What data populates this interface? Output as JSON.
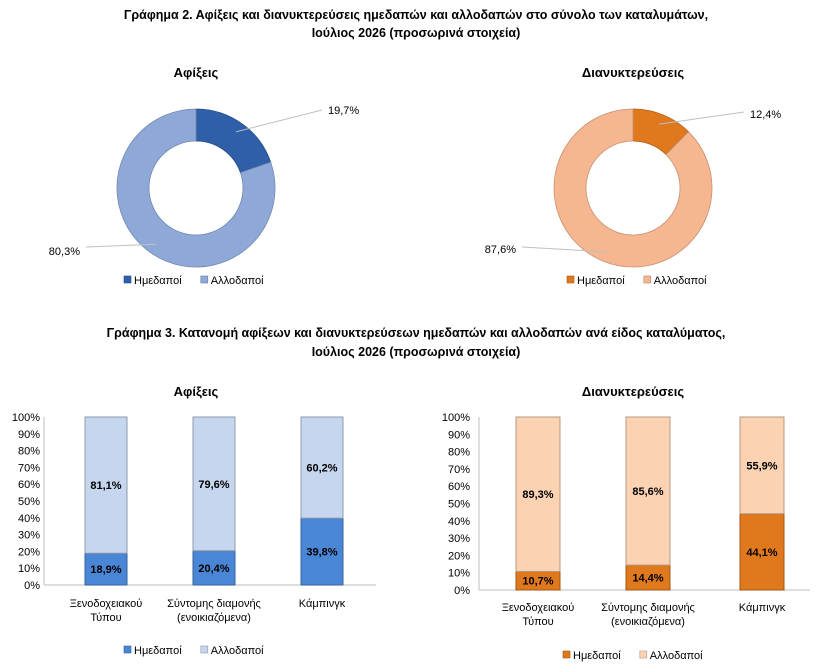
{
  "figure2": {
    "title_line1": "Γράφημα 2. Αφίξεις και διανυκτερεύσεις ημεδαπών και αλλοδαπών στο σύνολο των καταλυμάτων,",
    "title_line2": "Ιούλιος 2026  (προσωρινά στοιχεία)"
  },
  "figure3": {
    "title_line1": "Γράφημα 3. Κατανομή αφίξεων και διανυκτερεύσεων ημεδαπών και αλλοδαπών ανά είδος καταλύματος,",
    "title_line2": "Ιούλιος 2026 (προσωρινά στοιχεία)"
  },
  "chart_data": [
    {
      "id": "pie_arrivals",
      "type": "pie",
      "title": "Αφίξεις",
      "legend_position": "bottom",
      "slices": [
        {
          "name": "Ημεδαποί",
          "value": 19.7,
          "label": "19,7%",
          "color": "#2e5fa8"
        },
        {
          "name": "Αλλοδαποί",
          "value": 80.3,
          "label": "80,3%",
          "color": "#8ea9d8"
        }
      ]
    },
    {
      "id": "pie_nights",
      "type": "pie",
      "title": "Διανυκτερεύσεις",
      "legend_position": "bottom",
      "slices": [
        {
          "name": "Ημεδαποί",
          "value": 12.4,
          "label": "12,4%",
          "color": "#e0781e"
        },
        {
          "name": "Αλλοδαποί",
          "value": 87.6,
          "label": "87,6%",
          "color": "#f5b690"
        }
      ]
    },
    {
      "id": "bar_arrivals",
      "type": "bar",
      "stacked": true,
      "percent": true,
      "title": "Αφίξεις",
      "legend_position": "bottom",
      "ylim": [
        0,
        100
      ],
      "yticks": [
        "0%",
        "10%",
        "20%",
        "30%",
        "40%",
        "50%",
        "60%",
        "70%",
        "80%",
        "90%",
        "100%"
      ],
      "categories": [
        [
          "Ξενοδοχειακού",
          "Τύπου"
        ],
        [
          "Σύντομης διαμονής",
          "(ενοικιαζόμενα)"
        ],
        [
          "Κάμπινγκ"
        ]
      ],
      "series": [
        {
          "name": "Ημεδαποί",
          "values": [
            18.9,
            20.4,
            39.8
          ],
          "labels": [
            "18,9%",
            "20,4%",
            "39,8%"
          ],
          "color": "#4a86d6"
        },
        {
          "name": "Αλλοδαποί",
          "values": [
            81.1,
            79.6,
            60.2
          ],
          "labels": [
            "81,1%",
            "79,6%",
            "60,2%"
          ],
          "color": "#c6d6ee"
        }
      ]
    },
    {
      "id": "bar_nights",
      "type": "bar",
      "stacked": true,
      "percent": true,
      "title": "Διανυκτερεύσεις",
      "legend_position": "bottom",
      "ylim": [
        0,
        100
      ],
      "yticks": [
        "0%",
        "10%",
        "20%",
        "30%",
        "40%",
        "50%",
        "60%",
        "70%",
        "80%",
        "90%",
        "100%"
      ],
      "categories": [
        [
          "Ξενοδοχειακού",
          "Τύπου"
        ],
        [
          "Σύντομης διαμονής",
          "(ενοικιαζόμενα)"
        ],
        [
          "Κάμπινγκ"
        ]
      ],
      "series": [
        {
          "name": "Ημεδαποί",
          "values": [
            10.7,
            14.4,
            44.1
          ],
          "labels": [
            "10,7%",
            "14,4%",
            "44,1%"
          ],
          "color": "#e0781e"
        },
        {
          "name": "Αλλοδαποί",
          "values": [
            89.3,
            85.6,
            55.9
          ],
          "labels": [
            "89,3%",
            "85,6%",
            "55,9%"
          ],
          "color": "#fbd3b2"
        }
      ]
    }
  ]
}
